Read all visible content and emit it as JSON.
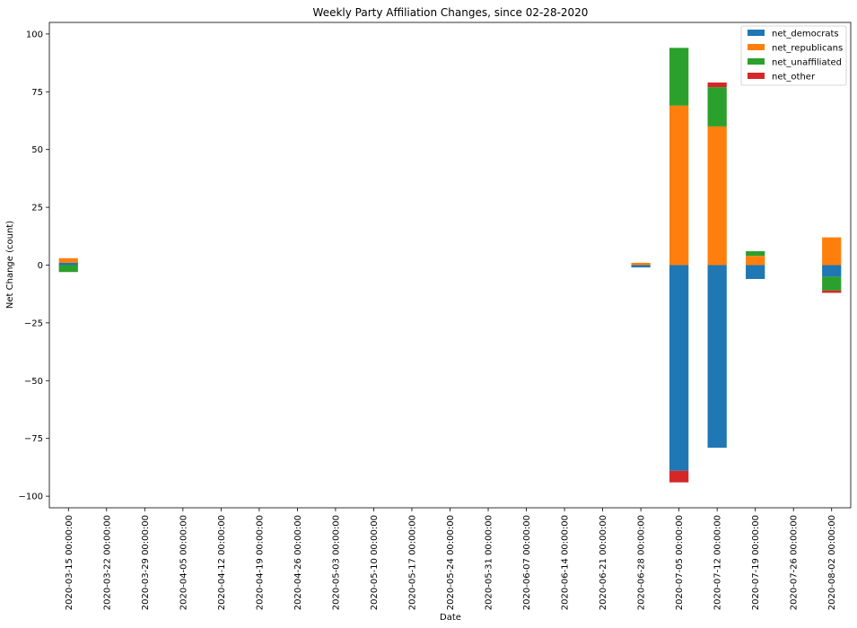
{
  "chart_data": {
    "type": "bar",
    "stacked": true,
    "title": "Weekly Party Affiliation Changes, since 02-28-2020",
    "xlabel": "Date",
    "ylabel": "Net Change (count)",
    "ylim": [
      -105,
      105
    ],
    "yticks": [
      100,
      75,
      50,
      25,
      0,
      -25,
      -50,
      -75,
      -100
    ],
    "ytick_labels": [
      "100",
      "75",
      "50",
      "25",
      "0",
      "−25",
      "−50",
      "−75",
      "−100"
    ],
    "grid": false,
    "legend_position": "top-right",
    "categories": [
      "2020-03-15 00:00:00",
      "2020-03-22 00:00:00",
      "2020-03-29 00:00:00",
      "2020-04-05 00:00:00",
      "2020-04-12 00:00:00",
      "2020-04-19 00:00:00",
      "2020-04-26 00:00:00",
      "2020-05-03 00:00:00",
      "2020-05-10 00:00:00",
      "2020-05-17 00:00:00",
      "2020-05-24 00:00:00",
      "2020-05-31 00:00:00",
      "2020-06-07 00:00:00",
      "2020-06-14 00:00:00",
      "2020-06-21 00:00:00",
      "2020-06-28 00:00:00",
      "2020-07-05 00:00:00",
      "2020-07-12 00:00:00",
      "2020-07-19 00:00:00",
      "2020-07-26 00:00:00",
      "2020-08-02 00:00:00"
    ],
    "series": [
      {
        "name": "net_democrats",
        "color": "#1f77b4",
        "values": [
          1,
          0,
          0,
          0,
          0,
          0,
          0,
          0,
          0,
          0,
          0,
          0,
          0,
          0,
          0,
          -1,
          -89,
          -79,
          -6,
          0,
          -5
        ]
      },
      {
        "name": "net_republicans",
        "color": "#ff7f0e",
        "values": [
          2,
          0,
          0,
          0,
          0,
          0,
          0,
          0,
          0,
          0,
          0,
          0,
          0,
          0,
          0,
          1,
          69,
          60,
          4,
          0,
          12
        ]
      },
      {
        "name": "net_unaffiliated",
        "color": "#2ca02c",
        "values": [
          -3,
          0,
          0,
          0,
          0,
          0,
          0,
          0,
          0,
          0,
          0,
          0,
          0,
          0,
          0,
          0,
          25,
          17,
          2,
          0,
          -6
        ]
      },
      {
        "name": "net_other",
        "color": "#d62728",
        "values": [
          0,
          0,
          0,
          0,
          0,
          0,
          0,
          0,
          0,
          0,
          0,
          0,
          0,
          0,
          0,
          0,
          -5,
          2,
          0,
          0,
          -1
        ]
      }
    ]
  }
}
